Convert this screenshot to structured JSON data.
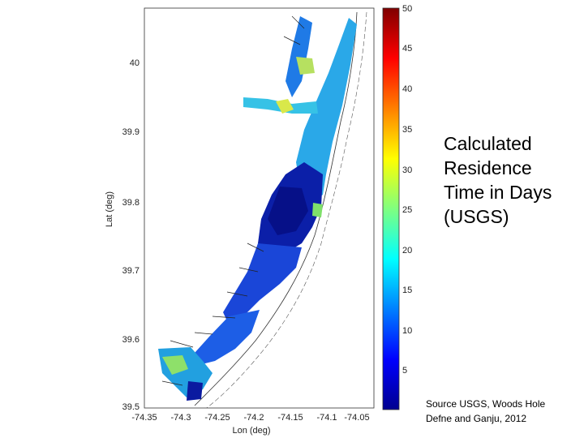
{
  "figure": {
    "x_axis_label": "Lon (deg)",
    "y_axis_label": "Lat (deg)",
    "x_ticks": [
      "-74.35",
      "-74.3",
      "-74.25",
      "-74.2",
      "-74.15",
      "-74.1",
      "-74.05"
    ],
    "y_ticks": [
      "40",
      "39.9",
      "39.8",
      "39.7",
      "39.6",
      "39.5"
    ],
    "colorbar_ticks": [
      "50",
      "45",
      "40",
      "35",
      "30",
      "25",
      "20",
      "15",
      "10",
      "5"
    ],
    "colorbar_range": [
      0,
      50
    ],
    "colormap": "jet"
  },
  "title_lines": [
    "Calculated",
    "Residence",
    "Time in Days",
    "(USGS)"
  ],
  "source_lines": [
    "Source USGS, Woods Hole",
    "Defne and Ganju, 2012"
  ]
}
